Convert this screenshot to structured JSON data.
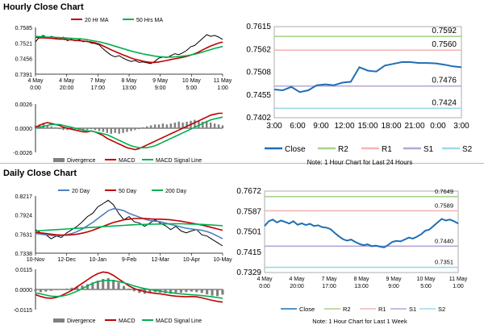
{
  "hourly_title": "Hourly Close Chart",
  "daily_title": "Daily Close Chart",
  "colors": {
    "price": "#000000",
    "ma_short": "#c00000",
    "ma_long": "#00b050",
    "macd": "#c00000",
    "signal": "#00b050",
    "divergence": "#808080",
    "close_right": "#1f6eb4",
    "r2": "#a9d18e",
    "r1": "#f4b6b6",
    "s1": "#b4a7d6",
    "s2": "#9dd9e8",
    "twenty_day": "#4f81bd",
    "fifty_day": "#c00000",
    "two_hundred_day": "#00b050"
  },
  "chart_data": [
    {
      "id": "hourly-price",
      "type": "line",
      "title": "",
      "legend": [
        "20 Hr MA",
        "50 Hrs MA"
      ],
      "legend_keys": [
        "ma_short",
        "ma_long"
      ],
      "y_ticks": [
        "0.7585",
        "0.7521",
        "0.7456",
        "0.7391"
      ],
      "x_ticks": [
        "4 May\n0:00",
        "4 May\n20:00",
        "7 May\n17:00",
        "8 May\n13:00",
        "9 May\n9:00",
        "10 May\n5:00",
        "11 May\n1:00"
      ],
      "ylim": [
        0.7391,
        0.7585
      ],
      "series": [
        {
          "name": "Close",
          "color_key": "price",
          "values": [
            0.7525,
            0.7545,
            0.7552,
            0.754,
            0.7548,
            0.7542,
            0.7535,
            0.7545,
            0.753,
            0.7536,
            0.7529,
            0.7534,
            0.7525,
            0.7528,
            0.752,
            0.7518,
            0.7512,
            0.7496,
            0.7482,
            0.747,
            0.7463,
            0.7468,
            0.7458,
            0.745,
            0.7444,
            0.7448,
            0.744,
            0.7442,
            0.7438,
            0.7435,
            0.7445,
            0.7458,
            0.7462,
            0.746,
            0.7468,
            0.7476,
            0.7472,
            0.748,
            0.749,
            0.7505,
            0.751,
            0.7525,
            0.754,
            0.7555,
            0.7548,
            0.7552,
            0.7545,
            0.7535
          ]
        },
        {
          "name": "20 Hr MA",
          "color_key": "ma_short",
          "values": [
            0.7545,
            0.7542,
            0.7542,
            0.7541,
            0.754,
            0.7538,
            0.7537,
            0.7536,
            0.7534,
            0.7533,
            0.7531,
            0.753,
            0.7528,
            0.7526,
            0.7524,
            0.7521,
            0.7516,
            0.7508,
            0.75,
            0.7492,
            0.7485,
            0.7478,
            0.7471,
            0.7465,
            0.7458,
            0.7453,
            0.7449,
            0.7445,
            0.7442,
            0.744,
            0.744,
            0.7442,
            0.7445,
            0.7448,
            0.7452,
            0.7455,
            0.7458,
            0.7461,
            0.7465,
            0.747,
            0.7476,
            0.7483,
            0.7492,
            0.75,
            0.7508,
            0.7514,
            0.752,
            0.7524
          ]
        },
        {
          "name": "50 Hrs MA",
          "color_key": "ma_long",
          "values": [
            0.7548,
            0.7547,
            0.7546,
            0.7545,
            0.7545,
            0.7544,
            0.7543,
            0.7542,
            0.7541,
            0.754,
            0.7539,
            0.7538,
            0.7536,
            0.7534,
            0.7531,
            0.7528,
            0.7525,
            0.7521,
            0.7517,
            0.7512,
            0.7507,
            0.7502,
            0.7497,
            0.7492,
            0.7487,
            0.7483,
            0.7479,
            0.7475,
            0.7472,
            0.7469,
            0.7466,
            0.7464,
            0.7463,
            0.7462,
            0.7462,
            0.7463,
            0.7464,
            0.7466,
            0.7468,
            0.7471,
            0.7474,
            0.7478,
            0.7483,
            0.7488,
            0.7493,
            0.7498,
            0.7502,
            0.7506
          ]
        }
      ]
    },
    {
      "id": "hourly-macd",
      "type": "line",
      "legend": [
        "Divergence",
        "MACD",
        "MACD Signal Line"
      ],
      "legend_keys": [
        "divergence",
        "macd",
        "signal"
      ],
      "y_ticks": [
        "0.0026",
        "0.0000",
        "-0.0026"
      ],
      "ylim": [
        -0.0026,
        0.0026
      ],
      "histogram": [
        0.0003,
        0.0004,
        0.0005,
        0.0003,
        0.0002,
        0.0001,
        -0.0001,
        -0.0002,
        -0.0002,
        -0.0001,
        -0.0001,
        -0.0002,
        -0.0003,
        -0.0002,
        -0.0001,
        -0.0002,
        -0.0003,
        -0.0004,
        -0.0005,
        -0.0006,
        -0.0005,
        -0.0006,
        -0.0005,
        -0.0004,
        -0.0003,
        -0.0002,
        -0.0001,
        0.0001,
        0.0002,
        0.0003,
        0.0004,
        0.0004,
        0.0005,
        0.0004,
        0.0005,
        0.0006,
        0.0007,
        0.0006,
        0.0007,
        0.0008,
        0.0009,
        0.0008,
        0.0007,
        0.0008,
        0.0006,
        0.0005,
        0.0004,
        0.0003
      ],
      "series": [
        {
          "name": "MACD",
          "color_key": "macd",
          "values": [
            0.0001,
            0.0003,
            0.0005,
            0.0006,
            0.0005,
            0.0004,
            0.0003,
            0.0001,
            0.0,
            -0.0001,
            -0.0002,
            -0.0003,
            -0.0004,
            -0.0004,
            -0.0003,
            -0.0004,
            -0.0006,
            -0.0008,
            -0.0011,
            -0.0013,
            -0.0015,
            -0.0017,
            -0.0019,
            -0.0021,
            -0.0022,
            -0.0023,
            -0.0022,
            -0.002,
            -0.0018,
            -0.0016,
            -0.0014,
            -0.0012,
            -0.001,
            -0.0008,
            -0.0006,
            -0.0004,
            -0.0002,
            0.0,
            0.0002,
            0.0004,
            0.0006,
            0.0008,
            0.001,
            0.0012,
            0.0014,
            0.0015,
            0.0016,
            0.0016
          ]
        },
        {
          "name": "MACD Signal Line",
          "color_key": "signal",
          "values": [
            0.0,
            0.0001,
            0.0002,
            0.0003,
            0.0004,
            0.0004,
            0.0004,
            0.0003,
            0.0002,
            0.0001,
            0.0,
            -0.0001,
            -0.0002,
            -0.0003,
            -0.0003,
            -0.0004,
            -0.0005,
            -0.0006,
            -0.0007,
            -0.0009,
            -0.0011,
            -0.0013,
            -0.0015,
            -0.0017,
            -0.0019,
            -0.002,
            -0.0021,
            -0.0021,
            -0.0021,
            -0.002,
            -0.0019,
            -0.0017,
            -0.0015,
            -0.0013,
            -0.0011,
            -0.0009,
            -0.0007,
            -0.0005,
            -0.0003,
            -0.0001,
            0.0001,
            0.0003,
            0.0005,
            0.0007,
            0.0009,
            0.001,
            0.0011,
            0.0012
          ]
        }
      ]
    },
    {
      "id": "hourly-pivots",
      "type": "line",
      "y_ticks": [
        "0.7615",
        "0.7562",
        "0.7508",
        "0.7455",
        "0.7402"
      ],
      "ylim": [
        0.7402,
        0.7615
      ],
      "x_ticks": [
        "3:00",
        "6:00",
        "9:00",
        "12:00",
        "15:00",
        "18:00",
        "21:00",
        "0:00",
        "3:00"
      ],
      "levels": [
        {
          "name": "R2",
          "color_key": "r2",
          "value": 0.7592,
          "label": "0.7592"
        },
        {
          "name": "R1",
          "color_key": "r1",
          "value": 0.756,
          "label": "0.7560"
        },
        {
          "name": "S1",
          "color_key": "s1",
          "value": 0.7476,
          "label": "0.7476"
        },
        {
          "name": "S2",
          "color_key": "s2",
          "value": 0.7424,
          "label": "0.7424"
        }
      ],
      "series": [
        {
          "name": "Close",
          "color_key": "close_right",
          "values": [
            0.7468,
            0.7466,
            0.7474,
            0.7462,
            0.7466,
            0.7478,
            0.748,
            0.7478,
            0.7484,
            0.7486,
            0.752,
            0.7512,
            0.751,
            0.7524,
            0.7528,
            0.7532,
            0.7532,
            0.753,
            0.753,
            0.7529,
            0.7526,
            0.7522,
            0.752
          ]
        }
      ],
      "legend": [
        "Close",
        "R2",
        "R1",
        "S1",
        "S2"
      ],
      "legend_keys": [
        "close_right",
        "r2",
        "r1",
        "s1",
        "s2"
      ],
      "note": "Note: 1 Hour Chart for Last 24 Hours"
    },
    {
      "id": "daily-price",
      "type": "line",
      "legend": [
        "20 Day",
        "50 Day",
        "200 Day"
      ],
      "legend_keys": [
        "twenty_day",
        "fifty_day",
        "two_hundred_day"
      ],
      "y_ticks": [
        "0.8217",
        "0.7924",
        "0.7631",
        "0.7338"
      ],
      "x_ticks": [
        "10-Nov",
        "12-Dec",
        "10-Jan",
        "9-Feb",
        "12-Mar",
        "10-Apr",
        "10-May"
      ],
      "ylim": [
        0.7338,
        0.8217
      ],
      "series": [
        {
          "name": "Close",
          "color_key": "price",
          "values": [
            0.77,
            0.765,
            0.762,
            0.756,
            0.76,
            0.758,
            0.765,
            0.77,
            0.775,
            0.782,
            0.79,
            0.795,
            0.805,
            0.81,
            0.815,
            0.808,
            0.795,
            0.785,
            0.79,
            0.782,
            0.78,
            0.775,
            0.78,
            0.785,
            0.78,
            0.776,
            0.77,
            0.775,
            0.768,
            0.765,
            0.768,
            0.77,
            0.762,
            0.76,
            0.755,
            0.75,
            0.745
          ]
        },
        {
          "name": "20 Day",
          "color_key": "twenty_day",
          "values": [
            0.764,
            0.763,
            0.762,
            0.761,
            0.7605,
            0.761,
            0.762,
            0.764,
            0.767,
            0.771,
            0.776,
            0.781,
            0.787,
            0.793,
            0.799,
            0.802,
            0.801,
            0.799,
            0.795,
            0.792,
            0.789,
            0.786,
            0.784,
            0.783,
            0.782,
            0.78,
            0.778,
            0.776,
            0.774,
            0.772,
            0.771,
            0.77,
            0.769,
            0.767,
            0.764,
            0.76,
            0.756
          ]
        },
        {
          "name": "50 Day",
          "color_key": "fifty_day",
          "values": [
            0.766,
            0.765,
            0.764,
            0.763,
            0.762,
            0.7615,
            0.7615,
            0.762,
            0.763,
            0.7645,
            0.7665,
            0.769,
            0.772,
            0.775,
            0.778,
            0.781,
            0.783,
            0.785,
            0.786,
            0.787,
            0.787,
            0.787,
            0.7865,
            0.786,
            0.786,
            0.7855,
            0.785,
            0.784,
            0.783,
            0.7815,
            0.78,
            0.7785,
            0.777,
            0.775,
            0.773,
            0.771,
            0.769
          ]
        },
        {
          "name": "200 Day",
          "color_key": "two_hundred_day",
          "values": [
            0.768,
            0.7685,
            0.769,
            0.7695,
            0.77,
            0.7705,
            0.771,
            0.7715,
            0.772,
            0.7725,
            0.773,
            0.7735,
            0.774,
            0.7745,
            0.775,
            0.7755,
            0.776,
            0.7765,
            0.777,
            0.7775,
            0.7778,
            0.778,
            0.7782,
            0.7784,
            0.7786,
            0.7788,
            0.779,
            0.779,
            0.779,
            0.7788,
            0.7785,
            0.7782,
            0.778,
            0.7775,
            0.777,
            0.7765,
            0.776
          ]
        }
      ]
    },
    {
      "id": "daily-macd",
      "type": "line",
      "legend": [
        "Divergence",
        "MACD",
        "MACD Signal Line"
      ],
      "legend_keys": [
        "divergence",
        "macd",
        "signal"
      ],
      "y_ticks": [
        "0.0115",
        "0.0000",
        "-0.0115"
      ],
      "ylim": [
        -0.0115,
        0.0115
      ],
      "histogram": [
        -0.001,
        -0.0015,
        -0.0012,
        -0.0008,
        -0.0004,
        0.0,
        0.0005,
        0.001,
        0.0015,
        0.0022,
        0.003,
        0.004,
        0.005,
        0.006,
        0.0065,
        0.0055,
        0.004,
        0.002,
        0.0005,
        -0.001,
        -0.002,
        -0.0025,
        -0.002,
        -0.0015,
        -0.0018,
        -0.0022,
        -0.0025,
        -0.002,
        -0.0018,
        -0.0015,
        -0.0012,
        -0.0015,
        -0.002,
        -0.0028,
        -0.0035,
        -0.0038,
        -0.003
      ],
      "series": [
        {
          "name": "MACD",
          "color_key": "macd",
          "values": [
            -0.003,
            -0.004,
            -0.0048,
            -0.005,
            -0.0045,
            -0.0035,
            -0.002,
            -0.0005,
            0.0015,
            0.0035,
            0.0055,
            0.0075,
            0.009,
            0.01,
            0.0095,
            0.008,
            0.006,
            0.004,
            0.002,
            0.0005,
            -0.0005,
            -0.0012,
            -0.0018,
            -0.0022,
            -0.0025,
            -0.003,
            -0.0035,
            -0.0038,
            -0.004,
            -0.0042,
            -0.004,
            -0.0042,
            -0.0048,
            -0.0055,
            -0.0062,
            -0.0068,
            -0.0072
          ]
        },
        {
          "name": "MACD Signal Line",
          "color_key": "signal",
          "values": [
            -0.002,
            -0.0025,
            -0.0032,
            -0.0038,
            -0.004,
            -0.0038,
            -0.0032,
            -0.0022,
            -0.001,
            0.0005,
            0.002,
            0.0035,
            0.0045,
            0.005,
            0.0052,
            0.005,
            0.0045,
            0.0038,
            0.003,
            0.002,
            0.0012,
            0.0005,
            0.0,
            -0.0005,
            -0.001,
            -0.0014,
            -0.0018,
            -0.0022,
            -0.0025,
            -0.0028,
            -0.003,
            -0.0032,
            -0.0035,
            -0.0038,
            -0.0042,
            -0.0046,
            -0.005
          ]
        }
      ]
    },
    {
      "id": "daily-pivots",
      "type": "line",
      "y_ticks": [
        "0.7672",
        "0.7587",
        "0.7501",
        "0.7415",
        "0.7329"
      ],
      "ylim": [
        0.7329,
        0.7672
      ],
      "x_ticks": [
        "4 May\n0:00",
        "4 May\n20:00",
        "7 May\n17:00",
        "8 May\n13:00",
        "9 May\n9:00",
        "10 May\n5:00",
        "11 May\n1:00"
      ],
      "levels": [
        {
          "name": "R2",
          "color_key": "r2",
          "value": 0.7649,
          "label": "0.7649"
        },
        {
          "name": "R1",
          "color_key": "r1",
          "value": 0.7589,
          "label": "0.7589"
        },
        {
          "name": "S1",
          "color_key": "s1",
          "value": 0.744,
          "label": "0.7440"
        },
        {
          "name": "S2",
          "color_key": "s2",
          "value": 0.7351,
          "label": "0.7351"
        }
      ],
      "series": [
        {
          "name": "Close",
          "color_key": "close_right",
          "values": [
            0.7525,
            0.7545,
            0.7552,
            0.754,
            0.7548,
            0.7542,
            0.7535,
            0.7545,
            0.753,
            0.7536,
            0.7529,
            0.7534,
            0.7525,
            0.7528,
            0.752,
            0.7518,
            0.7512,
            0.7496,
            0.7482,
            0.747,
            0.7463,
            0.7468,
            0.7458,
            0.745,
            0.7444,
            0.7448,
            0.744,
            0.7442,
            0.7438,
            0.7435,
            0.7445,
            0.7458,
            0.7462,
            0.746,
            0.7468,
            0.7476,
            0.7472,
            0.748,
            0.749,
            0.7505,
            0.751,
            0.7525,
            0.754,
            0.7555,
            0.7548,
            0.7552,
            0.7545,
            0.7535
          ]
        }
      ],
      "legend": [
        "Close",
        "R2",
        "R1",
        "S1",
        "S2"
      ],
      "legend_keys": [
        "close_right",
        "r2",
        "r1",
        "s1",
        "s2"
      ],
      "note": "Note: 1 Hour Chart for Last 1 Week"
    }
  ]
}
